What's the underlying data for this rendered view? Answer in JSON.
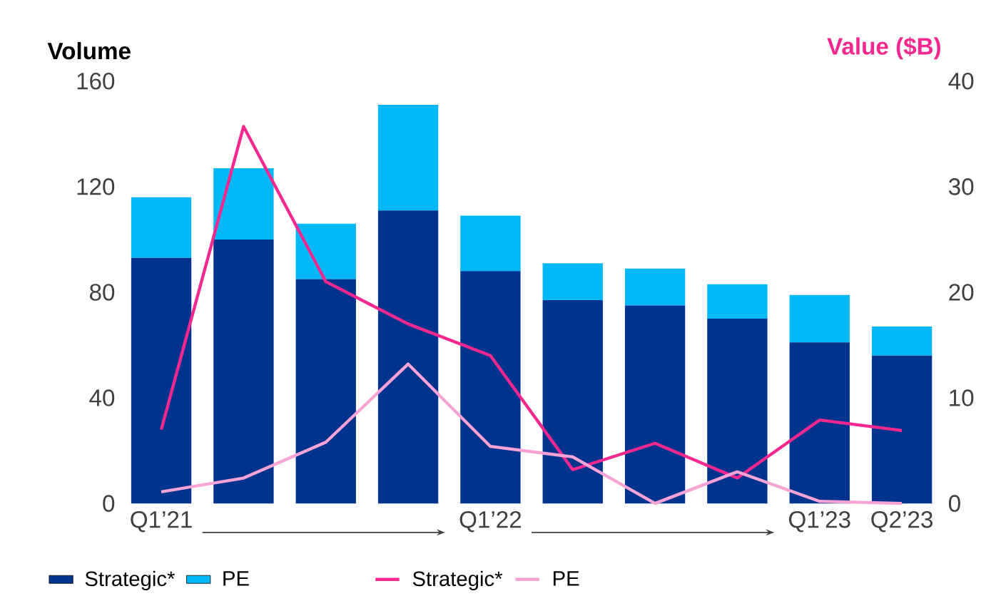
{
  "chart_data": {
    "type": "bar",
    "stacked": true,
    "ylabel": "Volume",
    "y2label": "Value ($B)",
    "categories": [
      "Q1’21",
      null,
      null,
      null,
      "Q1’22",
      null,
      null,
      null,
      "Q1’23",
      "Q2’23"
    ],
    "series": [
      {
        "name": "Strategic*",
        "type": "bar",
        "color": "#00338d",
        "values": [
          93,
          100,
          85,
          111,
          88,
          77,
          75,
          70,
          61,
          56
        ]
      },
      {
        "name": "PE",
        "type": "bar",
        "color": "#00b8f5",
        "values": [
          23,
          27,
          21,
          40,
          21,
          14,
          14,
          13,
          18,
          11
        ]
      },
      {
        "name": "Strategic*",
        "type": "line",
        "axis": "y2",
        "color": "#f5288f",
        "values": [
          7,
          35.7,
          21,
          17,
          14,
          3.2,
          5.7,
          2.4,
          7.9,
          6.9
        ]
      },
      {
        "name": "PE",
        "type": "line",
        "axis": "y2",
        "color": "#f7a3d6",
        "values": [
          1.1,
          2.4,
          5.8,
          13.2,
          5.4,
          4.4,
          0,
          3,
          0.2,
          0
        ]
      }
    ],
    "ylim": [
      0,
      160
    ],
    "yticks": [
      0,
      40,
      80,
      120,
      160
    ],
    "y2lim": [
      0,
      40
    ],
    "y2ticks": [
      0,
      10,
      20,
      30,
      40
    ],
    "legend": "bottom"
  }
}
